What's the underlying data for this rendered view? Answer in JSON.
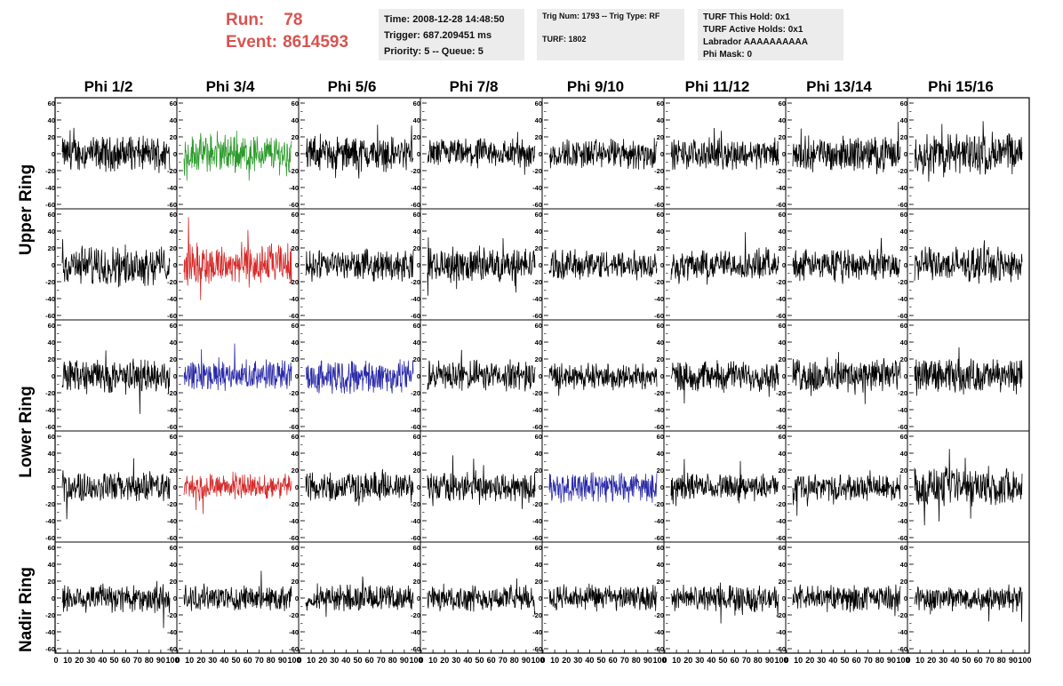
{
  "header": {
    "run_label": "Run:",
    "run_value": "78",
    "event_label": "Event:",
    "event_value": "8614593"
  },
  "info": {
    "time": "Time: 2008-12-28 14:48:50",
    "trigger": "Trigger: 687.209451 ms",
    "priority": "Priority: 5 -- Queue: 5",
    "trig_num": "Trig Num: 1793 -- Trig Type: RF",
    "turf": "TURF: 1802",
    "turf_this_hold": "TURF This Hold: 0x1",
    "turf_active_holds": "TURF Active Holds: 0x1",
    "labrador": "Labrador AAAAAAAAAA",
    "phi_mask": "Phi Mask: 0"
  },
  "colors": {
    "default_trace": "#000000",
    "green_trace": "#2a9a2a",
    "red_trace": "#d42a2a",
    "blue_trace": "#2a2aa8",
    "header_red": "#d9534f"
  },
  "chart_data": {
    "type": "line",
    "columns": [
      "Phi 1/2",
      "Phi 3/4",
      "Phi 5/6",
      "Phi 7/8",
      "Phi 9/10",
      "Phi 11/12",
      "Phi 13/14",
      "Phi 15/16"
    ],
    "ring_labels": [
      "Upper Ring",
      "Lower Ring",
      "Nadir Ring"
    ],
    "rows": 5,
    "xlim": [
      0,
      100
    ],
    "ylim": [
      -60,
      60
    ],
    "x_ticks": [
      "0",
      "10",
      "20",
      "30",
      "40",
      "50",
      "60",
      "70",
      "80",
      "90",
      "100"
    ],
    "y_ticks": [
      "60",
      "40",
      "20",
      "0",
      "-20",
      "-40",
      "-60"
    ],
    "samples_per_trace": 260,
    "trace_amplitude": [
      [
        16,
        18,
        16,
        14,
        14,
        14,
        16,
        20
      ],
      [
        18,
        20,
        14,
        16,
        14,
        14,
        14,
        16
      ],
      [
        16,
        14,
        16,
        14,
        12,
        14,
        16,
        16
      ],
      [
        14,
        12,
        14,
        14,
        14,
        12,
        12,
        18
      ],
      [
        14,
        12,
        12,
        12,
        12,
        12,
        12,
        12
      ]
    ],
    "highlighted": [
      {
        "row": 0,
        "col": 1,
        "color": "green"
      },
      {
        "row": 1,
        "col": 1,
        "color": "red"
      },
      {
        "row": 2,
        "col": 1,
        "color": "blue"
      },
      {
        "row": 2,
        "col": 2,
        "color": "blue"
      },
      {
        "row": 3,
        "col": 1,
        "color": "red"
      },
      {
        "row": 3,
        "col": 4,
        "color": "blue"
      }
    ]
  }
}
